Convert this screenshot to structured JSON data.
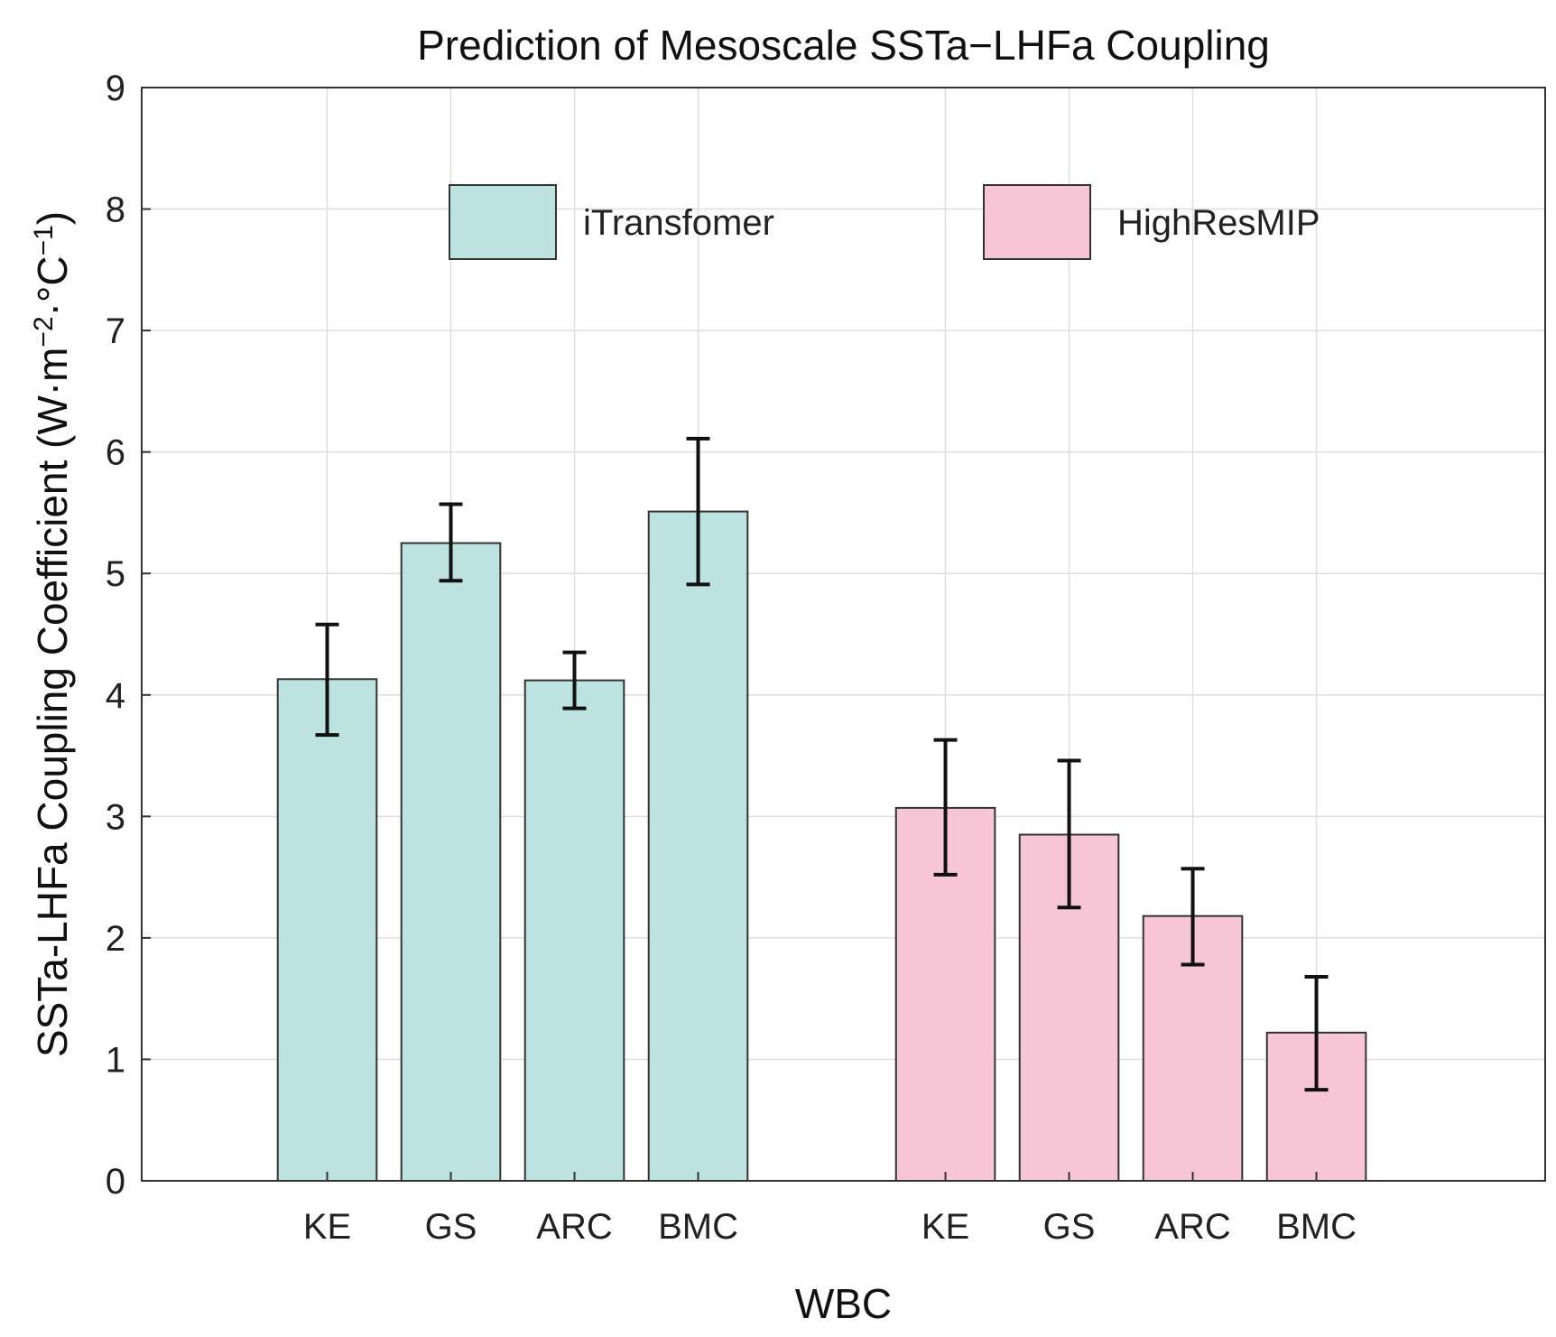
{
  "chart_data": {
    "type": "bar",
    "title": "Prediction of Mesoscale SSTa−LHFa Coupling",
    "xlabel": "WBC",
    "ylabel": "SSTa-LHFa Coupling Coefficient (W·m",
    "ylabel_sup1": "−2",
    "ylabel_mid": "·°C",
    "ylabel_sup2": "−1",
    "ylabel_end": ")",
    "ylim": [
      0,
      9
    ],
    "yticks": [
      "0",
      "1",
      "2",
      "3",
      "4",
      "5",
      "6",
      "7",
      "8",
      "9"
    ],
    "grid": true,
    "legend_position": "top",
    "series": [
      {
        "name": "iTransfomer",
        "color": "#bde3e0",
        "categories": [
          "KE",
          "GS",
          "ARC",
          "BMC"
        ],
        "values": [
          4.13,
          5.25,
          4.12,
          5.51
        ],
        "err_low": [
          3.67,
          4.94,
          3.89,
          4.91
        ],
        "err_high": [
          4.58,
          5.57,
          4.35,
          6.11
        ]
      },
      {
        "name": "HighResMIP",
        "color": "#f7c6d6",
        "categories": [
          "KE",
          "GS",
          "ARC",
          "BMC"
        ],
        "values": [
          3.07,
          2.85,
          2.18,
          1.22
        ],
        "err_low": [
          2.52,
          2.25,
          1.78,
          0.75
        ],
        "err_high": [
          3.63,
          3.46,
          2.57,
          1.68
        ]
      }
    ]
  }
}
